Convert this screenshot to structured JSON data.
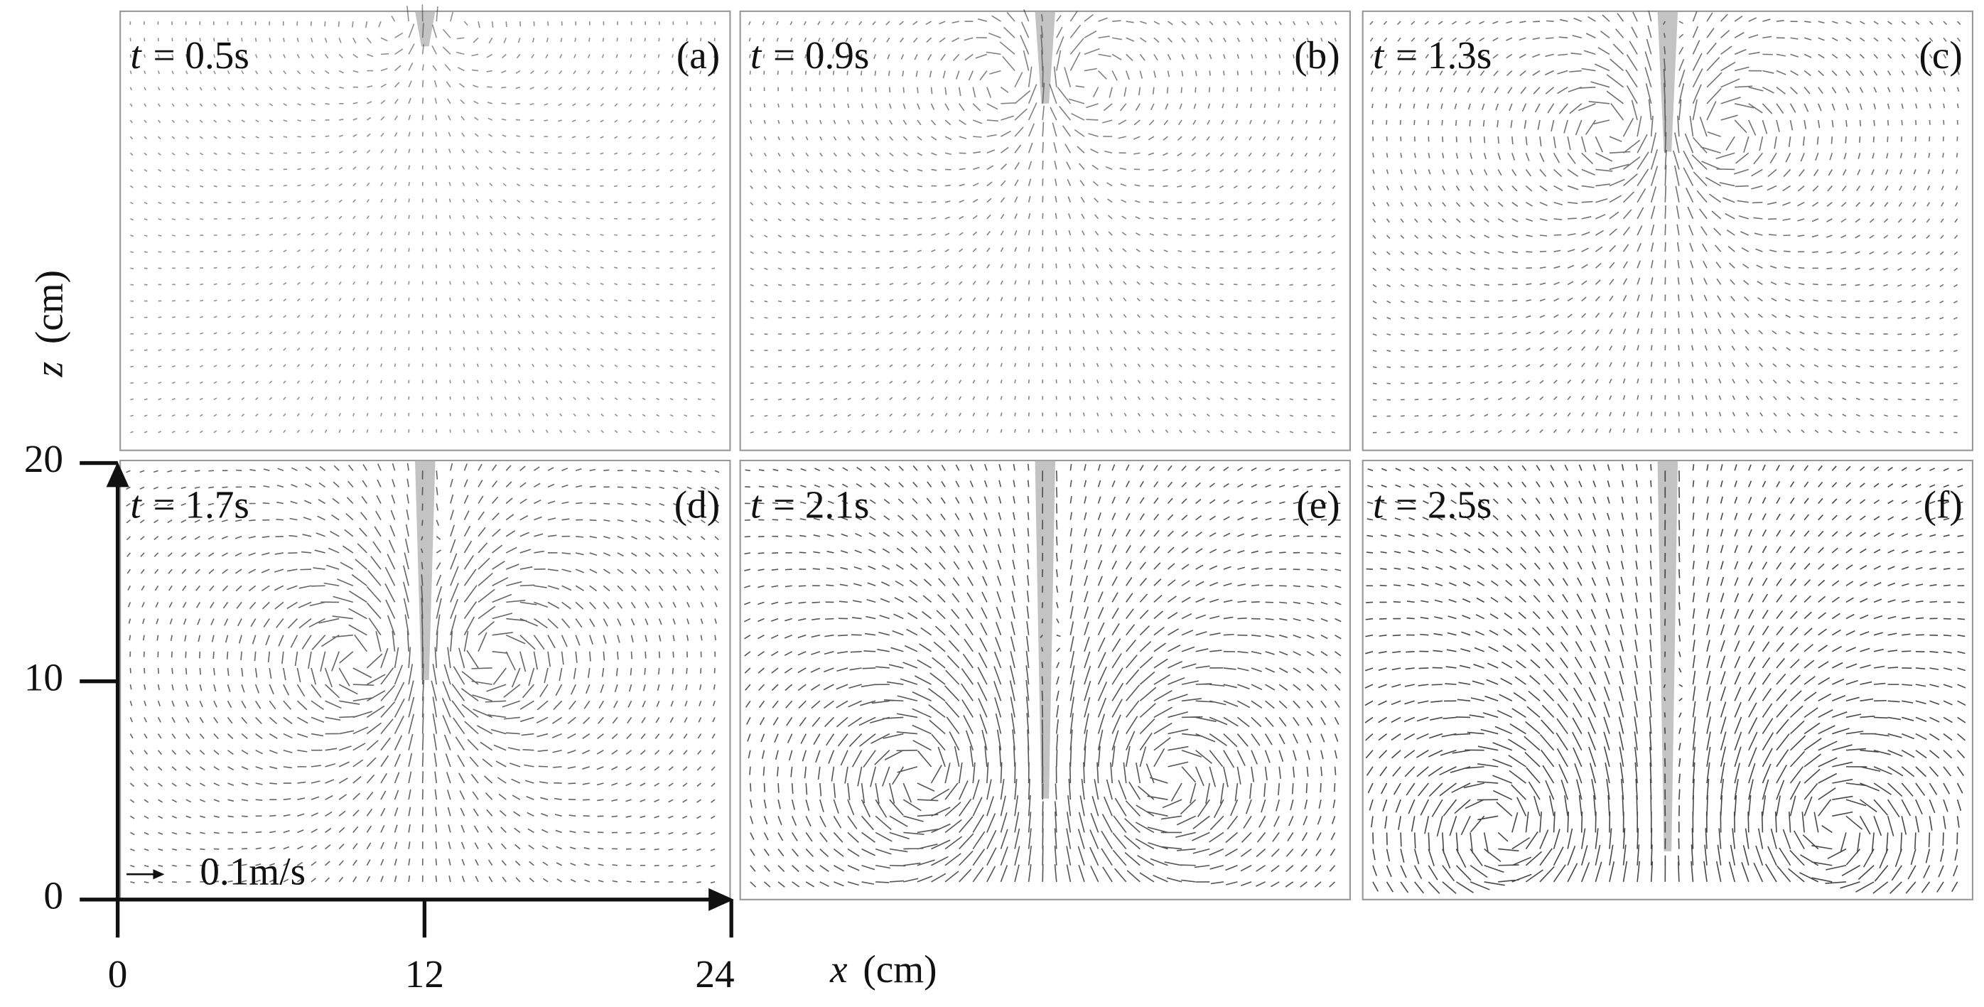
{
  "panels": [
    {
      "variable": "t",
      "time": "= 0.5s",
      "label": "(a)"
    },
    {
      "variable": "t",
      "time": "= 0.9s",
      "label": "(b)"
    },
    {
      "variable": "t",
      "time": "= 1.3s",
      "label": "(c)"
    },
    {
      "variable": "t",
      "time": "= 1.7s",
      "label": "(d)"
    },
    {
      "variable": "t",
      "time": "= 2.1s",
      "label": "(e)"
    },
    {
      "variable": "t",
      "time": "= 2.5s",
      "label": "(f)"
    }
  ],
  "x_axis": {
    "symbol": "x",
    "unit": "(cm)",
    "range": [
      0,
      24
    ],
    "ticks": [
      0,
      12,
      24
    ]
  },
  "z_axis": {
    "symbol": "z",
    "unit": "(cm)",
    "range": [
      0,
      20
    ],
    "ticks": [
      0,
      10,
      20
    ]
  },
  "scale_label": "0.1m/s"
}
